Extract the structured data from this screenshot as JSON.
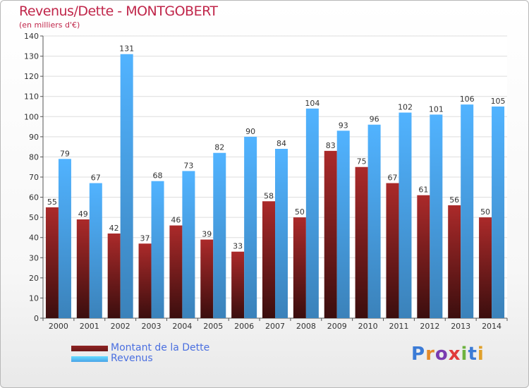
{
  "title": "Revenus/Dette - MONTGOBERT",
  "subtitle": "(en milliers d'€)",
  "logo": {
    "letters": [
      "P",
      "r",
      "o",
      "x",
      "i",
      "t",
      "i"
    ],
    "colors": [
      "#3b7bd6",
      "#e48a2a",
      "#7a3bb0",
      "#e03a3a",
      "#6db33f",
      "#3b7bd6",
      "#e0a02a"
    ]
  },
  "legend": [
    {
      "label": "Montant de la Dette",
      "color": "#6b1a1a"
    },
    {
      "label": "Revenus",
      "color": "#4aa3e8"
    }
  ],
  "chart_data": {
    "type": "bar",
    "categories": [
      "2000",
      "2001",
      "2002",
      "2003",
      "2004",
      "2005",
      "2006",
      "2007",
      "2008",
      "2009",
      "2010",
      "2011",
      "2012",
      "2013",
      "2014"
    ],
    "series": [
      {
        "name": "Montant de la Dette",
        "color": "#6b1a1a",
        "values": [
          55,
          49,
          42,
          37,
          46,
          39,
          33,
          58,
          50,
          83,
          75,
          67,
          61,
          56,
          50
        ]
      },
      {
        "name": "Revenus",
        "color": "#4aa3e8",
        "values": [
          79,
          67,
          131,
          68,
          73,
          82,
          90,
          84,
          104,
          93,
          96,
          102,
          101,
          106,
          105
        ]
      }
    ],
    "ylim": [
      0,
      140
    ],
    "yticks": [
      0,
      10,
      20,
      30,
      40,
      50,
      60,
      70,
      80,
      90,
      100,
      110,
      120,
      130,
      140
    ],
    "grid": true,
    "legend_position": "bottom-left"
  }
}
